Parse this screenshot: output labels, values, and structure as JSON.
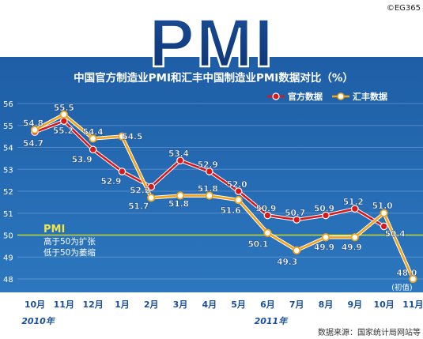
{
  "copyright": "©EG365",
  "banner": "PMI",
  "source_note": "数据来源：国家统计局网站等",
  "colors": {
    "background_top": "#1e5ea6",
    "background_bottom": "#2f7cc4",
    "official": "#d7191c",
    "official_marker": "#d7191c",
    "hsbc": "#f3a419",
    "hsbc_marker": "#ffffff",
    "threshold_line": "#c8d92a",
    "title_bar": "#ffffff"
  },
  "threshold_note": {
    "title": "PMI",
    "line1": "高于50为扩张",
    "line2": "低于50为萎缩"
  },
  "chart_data": {
    "type": "line",
    "title": "中国官方制造业PMI和汇丰中国制造业PMI数据对比（%）",
    "xlabel": "",
    "ylabel": "",
    "categories": [
      "10月",
      "11月",
      "12月",
      "1月",
      "2月",
      "3月",
      "4月",
      "5月",
      "6月",
      "7月",
      "8月",
      "9月",
      "10月",
      "11月"
    ],
    "year_labels": [
      {
        "text": "2010年",
        "category_index": 0
      },
      {
        "text": "2011年",
        "category_index": 8
      }
    ],
    "ylim": [
      48,
      56
    ],
    "yticks": [
      48,
      49,
      50,
      51,
      52,
      53,
      54,
      55,
      56
    ],
    "grid": true,
    "legend_placement": "top-right",
    "threshold": 50,
    "series": [
      {
        "name": "官方数据",
        "key": "official",
        "values": [
          54.7,
          55.2,
          53.9,
          52.9,
          52.2,
          53.4,
          52.9,
          52.0,
          50.9,
          50.7,
          50.9,
          51.2,
          50.4,
          null
        ],
        "labels": [
          "54.7",
          "55.2",
          "53.9",
          "52.9",
          "52.2",
          "53.4",
          "52.9",
          "52.0",
          "50.9",
          "50.7",
          "50.9",
          "51.2",
          "50.4",
          ""
        ]
      },
      {
        "name": "汇丰数据",
        "key": "hsbc",
        "values": [
          54.8,
          55.5,
          54.4,
          54.5,
          51.7,
          51.8,
          51.8,
          51.6,
          50.1,
          49.3,
          49.9,
          49.9,
          51.0,
          48.0
        ],
        "labels": [
          "54.8",
          "55.5",
          "54.4",
          "54.5",
          "51.7",
          "51.8",
          "51.8",
          "51.6",
          "50.1",
          "49.3",
          "49.9",
          "49.9",
          "51.0",
          "48.0"
        ]
      }
    ],
    "annotations": [
      {
        "text": "(初值)",
        "series": "hsbc",
        "category_index": 13
      }
    ]
  }
}
